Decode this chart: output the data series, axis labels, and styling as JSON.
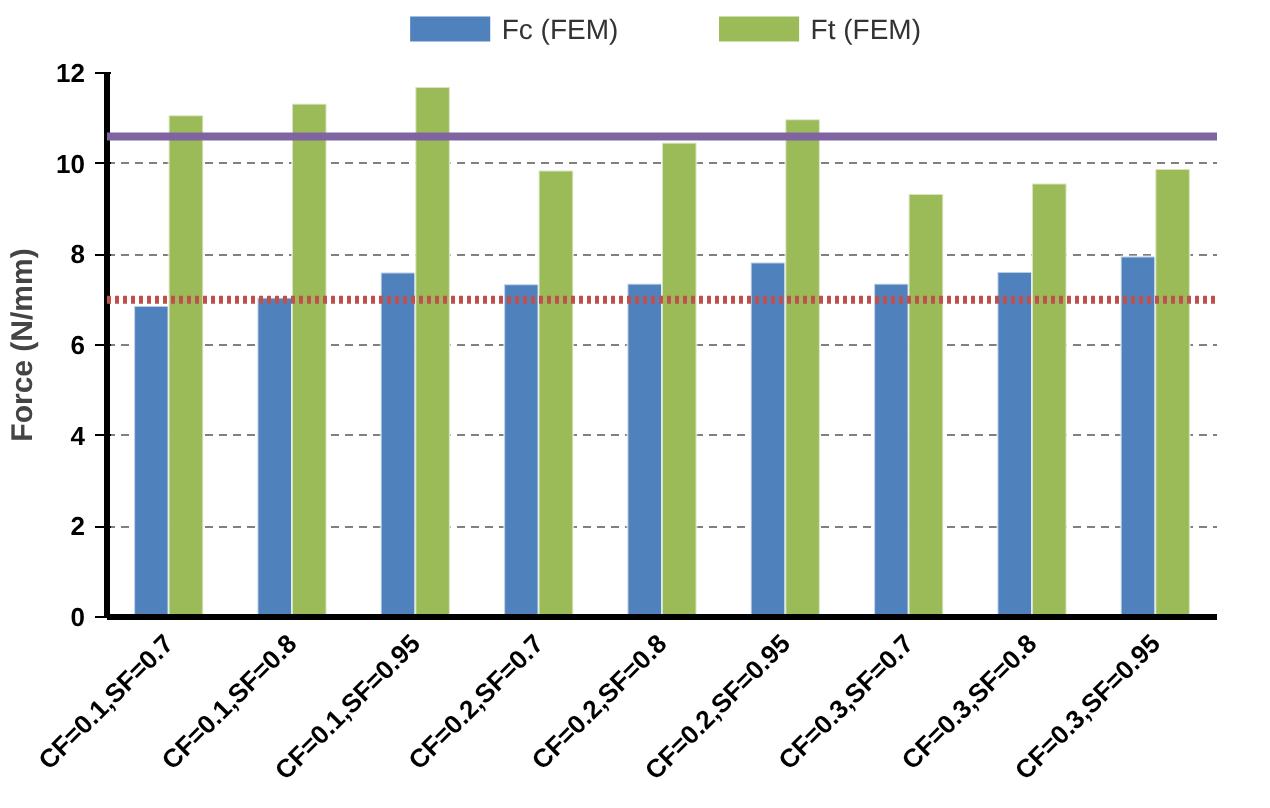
{
  "chart_data": {
    "type": "bar",
    "ylabel": "Force (N/mm)",
    "categories": [
      "CF=0.1,SF=0.7",
      "CF=0.1,SF=0.8",
      "CF=0.1,SF=0.95",
      "CF=0.2,SF=0.7",
      "CF=0.2,SF=0.8",
      "CF=0.2,SF=0.95",
      "CF=0.3,SF=0.7",
      "CF=0.3,SF=0.8",
      "CF=0.3,SF=0.95"
    ],
    "series": [
      {
        "name": "Fc (FEM)",
        "color": "#4f81bd",
        "values": [
          6.86,
          7.04,
          7.6,
          7.34,
          7.35,
          7.82,
          7.35,
          7.61,
          7.95
        ]
      },
      {
        "name": "Ft (FEM)",
        "color": "#9bbb59",
        "values": [
          11.07,
          11.32,
          11.69,
          9.85,
          10.46,
          10.98,
          9.33,
          9.56,
          9.88
        ]
      }
    ],
    "ref_lines": [
      {
        "axis": "y",
        "value": 10.6,
        "color": "#8064a2",
        "line_style": "solid"
      },
      {
        "axis": "y",
        "value": 7.0,
        "color": "#c0504d",
        "line_style": "dotted"
      }
    ],
    "ylim": [
      0,
      12
    ],
    "yticks": [
      0,
      2,
      4,
      6,
      8,
      10,
      12
    ],
    "grid": "y",
    "legend": "top"
  }
}
